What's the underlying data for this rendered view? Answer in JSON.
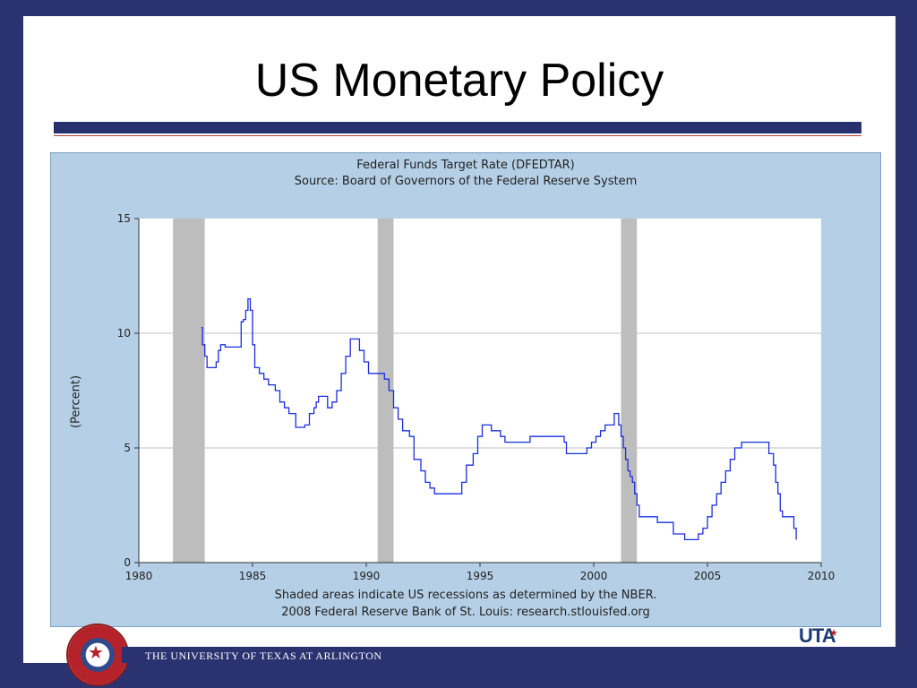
{
  "slide": {
    "title": "US Monetary Policy",
    "footer": "THE UNIVERSITY OF TEXAS AT ARLINGTON",
    "logo_text": "UTA"
  },
  "colors": {
    "background": "#2b3270",
    "chart_panel": "#b5cfe6",
    "series_line": "#1a2ee0",
    "recession_shade": "#bdbdbd"
  },
  "chart_data": {
    "type": "line",
    "title": "Federal Funds Target Rate (DFEDTAR)",
    "subtitle": "Source: Board of Governors of the Federal Reserve System",
    "xlabel": "",
    "ylabel": "(Percent)",
    "xlim": [
      1980,
      2010
    ],
    "ylim": [
      0,
      15
    ],
    "xticks": [
      1980,
      1985,
      1990,
      1995,
      2000,
      2005,
      2010
    ],
    "yticks": [
      0,
      5,
      10,
      15
    ],
    "grid": "horizontal",
    "notes": [
      "Shaded areas indicate US recessions as determined by the NBER.",
      "2008 Federal Reserve Bank of St. Louis: research.stlouisfed.org"
    ],
    "recessions": [
      [
        1981.5,
        1982.9
      ],
      [
        1990.5,
        1991.2
      ],
      [
        2001.2,
        2001.9
      ]
    ],
    "series": [
      {
        "name": "DFEDTAR",
        "x": [
          1982.75,
          1982.8,
          1982.9,
          1983.0,
          1983.2,
          1983.4,
          1983.5,
          1983.6,
          1983.8,
          1984.0,
          1984.2,
          1984.3,
          1984.5,
          1984.6,
          1984.7,
          1984.8,
          1984.9,
          1985.0,
          1985.1,
          1985.3,
          1985.5,
          1985.7,
          1986.0,
          1986.2,
          1986.4,
          1986.6,
          1986.9,
          1987.1,
          1987.3,
          1987.5,
          1987.7,
          1987.8,
          1987.9,
          1988.1,
          1988.3,
          1988.5,
          1988.7,
          1988.9,
          1989.1,
          1989.3,
          1989.5,
          1989.7,
          1989.9,
          1990.1,
          1990.5,
          1990.8,
          1991.0,
          1991.2,
          1991.4,
          1991.6,
          1991.9,
          1992.1,
          1992.4,
          1992.6,
          1992.8,
          1993.0,
          1993.5,
          1994.0,
          1994.2,
          1994.4,
          1994.7,
          1994.9,
          1995.1,
          1995.5,
          1995.9,
          1996.1,
          1996.5,
          1997.0,
          1997.2,
          1997.8,
          1998.4,
          1998.7,
          1998.8,
          1999.0,
          1999.5,
          1999.7,
          1999.9,
          2000.1,
          2000.3,
          2000.5,
          2000.9,
          2001.0,
          2001.1,
          2001.2,
          2001.3,
          2001.4,
          2001.5,
          2001.6,
          2001.7,
          2001.8,
          2001.9,
          2002.0,
          2002.8,
          2003.0,
          2003.5,
          2003.8,
          2004.0,
          2004.5,
          2004.6,
          2004.8,
          2005.0,
          2005.2,
          2005.4,
          2005.6,
          2005.8,
          2006.0,
          2006.2,
          2006.5,
          2006.8,
          2007.0,
          2007.5,
          2007.7,
          2007.9,
          2008.0,
          2008.1,
          2008.2,
          2008.3,
          2008.8,
          2008.9
        ],
        "y": [
          10.25,
          9.5,
          9.0,
          8.5,
          8.5,
          8.75,
          9.25,
          9.5,
          9.4,
          9.4,
          9.4,
          9.4,
          10.5,
          10.6,
          11.0,
          11.5,
          11.0,
          9.5,
          8.5,
          8.25,
          8.0,
          7.75,
          7.5,
          7.0,
          6.75,
          6.5,
          5.9,
          5.9,
          6.0,
          6.5,
          6.75,
          7.0,
          7.25,
          7.25,
          6.75,
          7.0,
          7.5,
          8.25,
          9.0,
          9.75,
          9.75,
          9.25,
          8.75,
          8.25,
          8.25,
          8.0,
          7.5,
          6.75,
          6.25,
          5.75,
          5.5,
          4.5,
          4.0,
          3.5,
          3.25,
          3.0,
          3.0,
          3.0,
          3.5,
          4.25,
          4.75,
          5.5,
          6.0,
          5.75,
          5.5,
          5.25,
          5.25,
          5.25,
          5.5,
          5.5,
          5.5,
          5.25,
          4.75,
          4.75,
          4.75,
          5.0,
          5.25,
          5.5,
          5.75,
          6.0,
          6.5,
          6.5,
          6.0,
          5.5,
          5.0,
          4.5,
          4.0,
          3.75,
          3.5,
          3.0,
          2.5,
          2.0,
          1.75,
          1.75,
          1.25,
          1.25,
          1.0,
          1.0,
          1.25,
          1.5,
          2.0,
          2.5,
          3.0,
          3.5,
          4.0,
          4.5,
          5.0,
          5.25,
          5.25,
          5.25,
          5.25,
          4.75,
          4.25,
          3.5,
          3.0,
          2.25,
          2.0,
          1.5,
          1.0
        ]
      }
    ]
  }
}
